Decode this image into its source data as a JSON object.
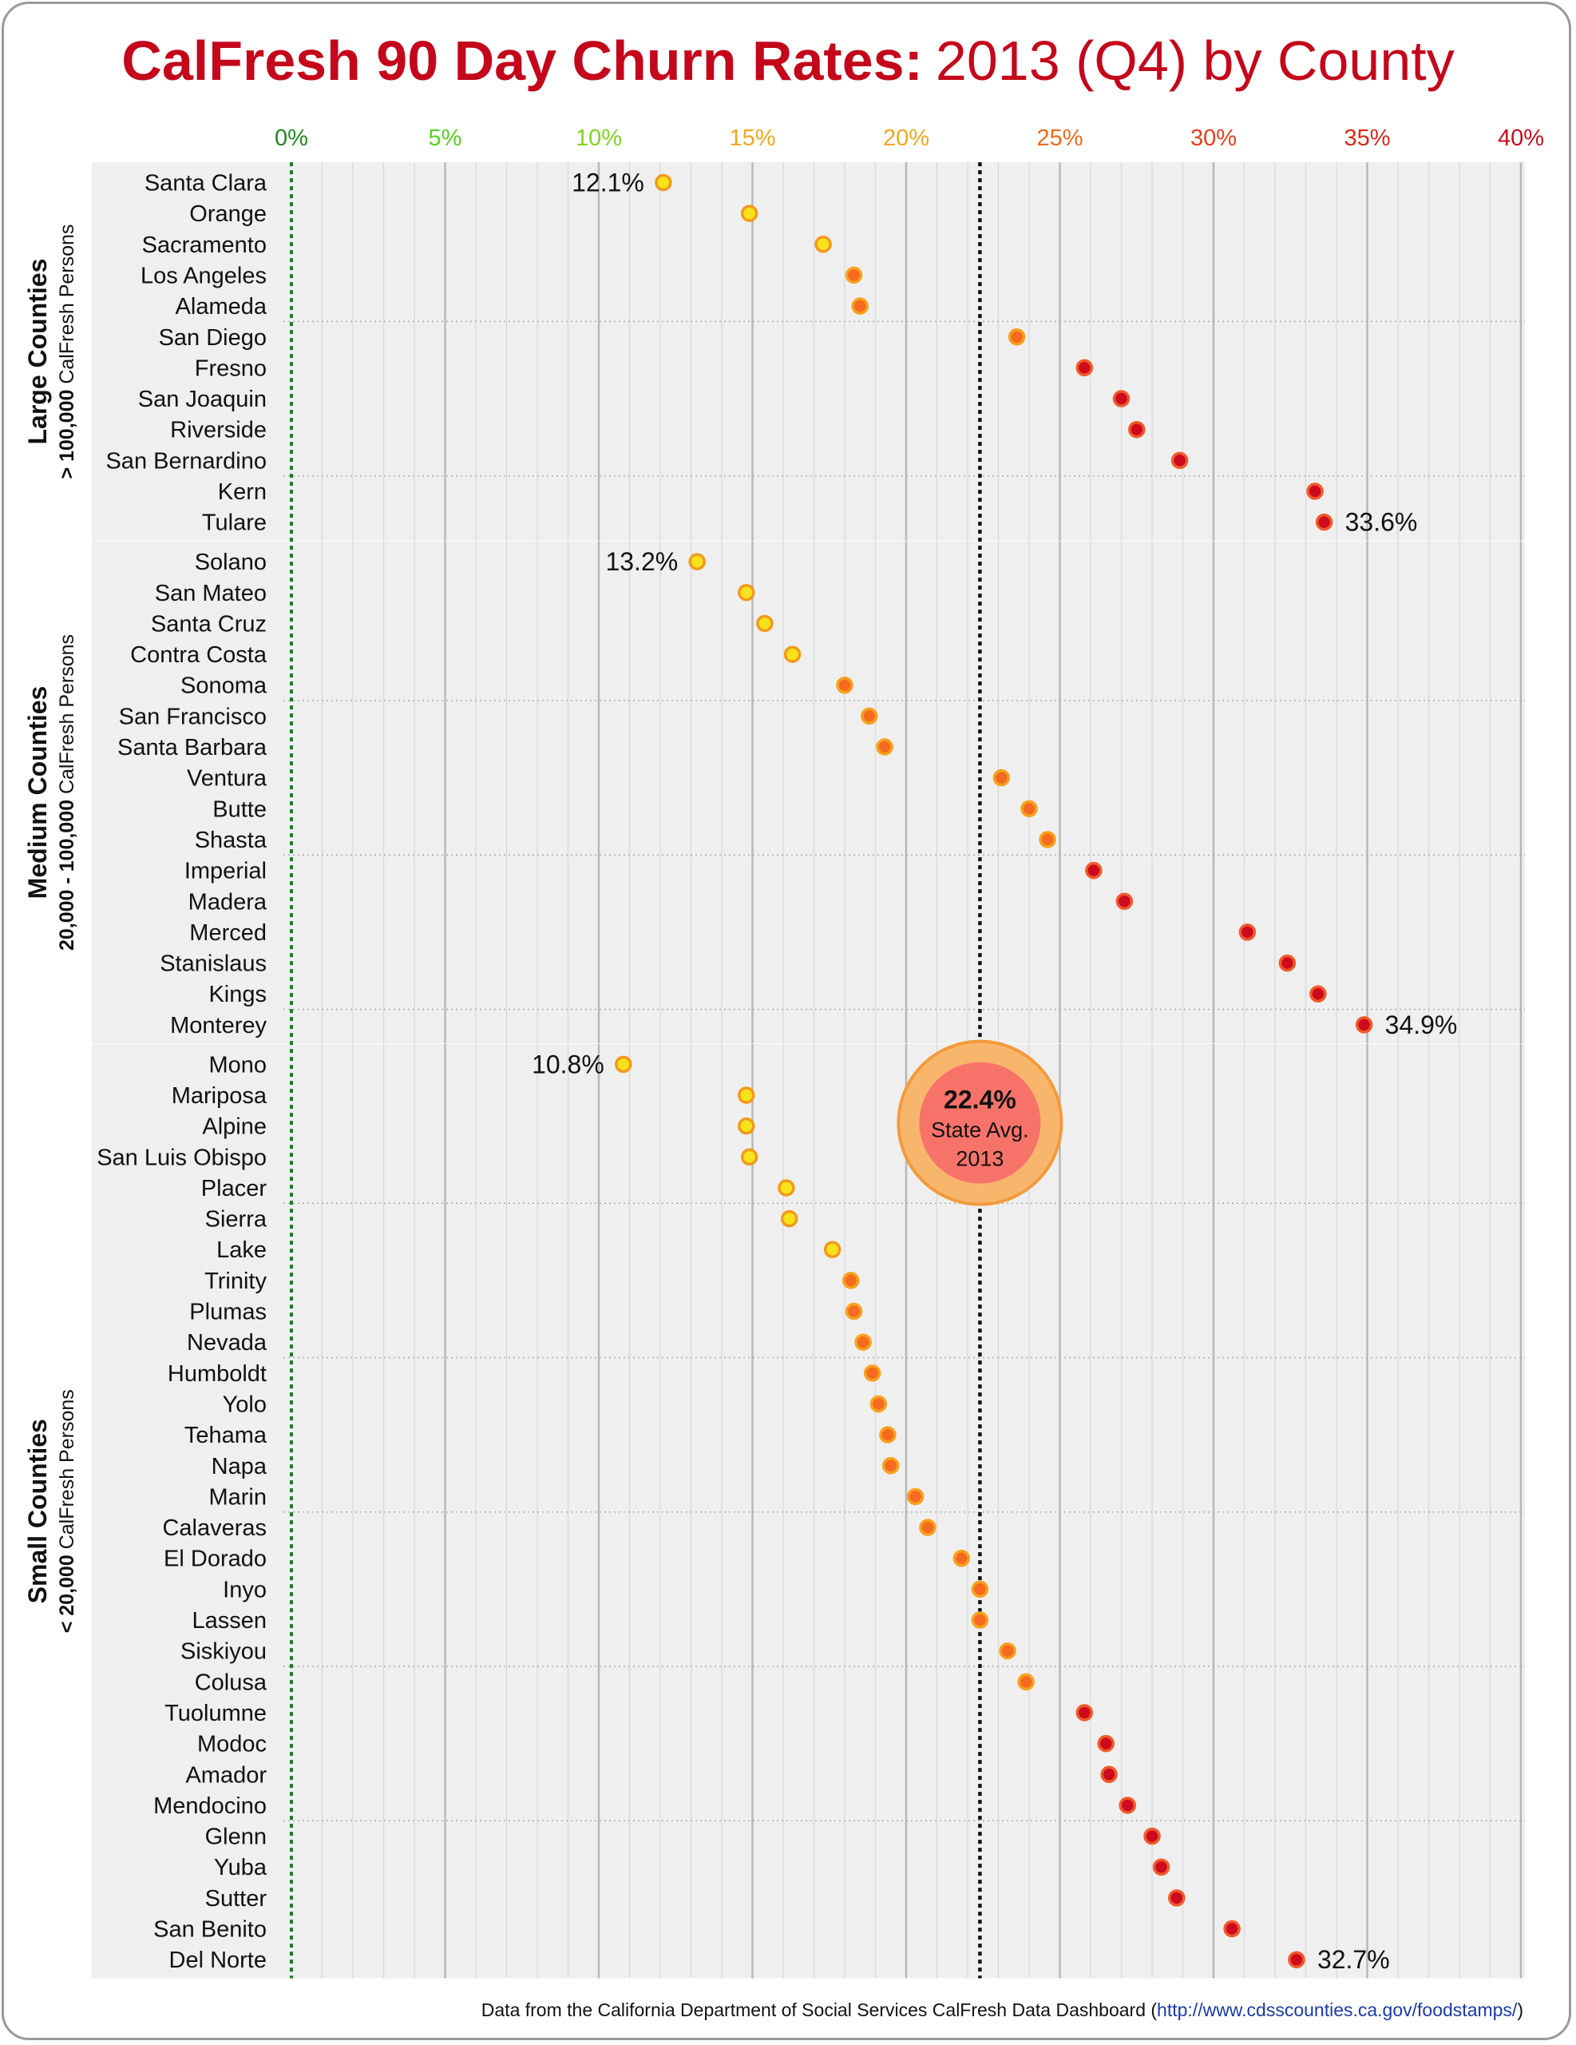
{
  "title": {
    "bold": "CalFresh 90 Day Churn Rates:",
    "rest": "2013 (Q4) by County"
  },
  "source": {
    "text": "Data from the California Department of Social Services CalFresh Data Dashboard",
    "link": "http://www.cdsscounties.ca.gov/foodstamps/"
  },
  "colors": {
    "low": "#f7e21b",
    "mid": "#f46a1f",
    "high": "#cd0a1e",
    "zero_line": "#1f7a1f",
    "avg_line": "#111111",
    "panel_bg": "#efefef",
    "grid": "#bdbdbd",
    "tick_colors": [
      "#1f8a1f",
      "#55d11f",
      "#7fd41f",
      "#f2a81d",
      "#f2a81d",
      "#ef6a1d",
      "#e4401a",
      "#d42a1a",
      "#c70f1f"
    ]
  },
  "chart_data": {
    "type": "scatter",
    "title": "CalFresh 90 Day Churn Rates: 2013 (Q4) by County",
    "x_axis": {
      "range": [
        0,
        40
      ],
      "ticks": [
        "0%",
        "5%",
        "10%",
        "15%",
        "20%",
        "25%",
        "30%",
        "35%",
        "40%"
      ],
      "position": "top"
    },
    "state_average": {
      "value": 22.4,
      "label": "22.4%",
      "line1": "State Avg.",
      "line2": "2013"
    },
    "groups": [
      {
        "name": "Large Counties",
        "subtitle_bold": "> 100,000",
        "subtitle": "CalFresh Persons",
        "counties": [
          {
            "name": "Santa Clara",
            "value": 12.1,
            "label": "12.1%"
          },
          {
            "name": "Orange",
            "value": 14.9
          },
          {
            "name": "Sacramento",
            "value": 17.3
          },
          {
            "name": "Los Angeles",
            "value": 18.3
          },
          {
            "name": "Alameda",
            "value": 18.5
          },
          {
            "name": "San Diego",
            "value": 23.6
          },
          {
            "name": "Fresno",
            "value": 25.8
          },
          {
            "name": "San Joaquin",
            "value": 27.0
          },
          {
            "name": "Riverside",
            "value": 27.5
          },
          {
            "name": "San Bernardino",
            "value": 28.9
          },
          {
            "name": "Kern",
            "value": 33.3
          },
          {
            "name": "Tulare",
            "value": 33.6,
            "label": "33.6%"
          }
        ]
      },
      {
        "name": "Medium Counties",
        "subtitle_bold": "20,000 - 100,000",
        "subtitle": "CalFresh Persons",
        "counties": [
          {
            "name": "Solano",
            "value": 13.2,
            "label": "13.2%"
          },
          {
            "name": "San Mateo",
            "value": 14.8
          },
          {
            "name": "Santa Cruz",
            "value": 15.4
          },
          {
            "name": "Contra Costa",
            "value": 16.3
          },
          {
            "name": "Sonoma",
            "value": 18.0
          },
          {
            "name": "San Francisco",
            "value": 18.8
          },
          {
            "name": "Santa Barbara",
            "value": 19.3
          },
          {
            "name": "Ventura",
            "value": 23.1
          },
          {
            "name": "Butte",
            "value": 24.0
          },
          {
            "name": "Shasta",
            "value": 24.6
          },
          {
            "name": "Imperial",
            "value": 26.1
          },
          {
            "name": "Madera",
            "value": 27.1
          },
          {
            "name": "Merced",
            "value": 31.1
          },
          {
            "name": "Stanislaus",
            "value": 32.4
          },
          {
            "name": "Kings",
            "value": 33.4
          },
          {
            "name": "Monterey",
            "value": 34.9,
            "label": "34.9%"
          }
        ]
      },
      {
        "name": "Small Counties",
        "subtitle_bold": "< 20,000",
        "subtitle": "CalFresh Persons",
        "counties": [
          {
            "name": "Mono",
            "value": 10.8,
            "label": "10.8%"
          },
          {
            "name": "Mariposa",
            "value": 14.8
          },
          {
            "name": "Alpine",
            "value": 14.8
          },
          {
            "name": "San Luis Obispo",
            "value": 14.9
          },
          {
            "name": "Placer",
            "value": 16.1
          },
          {
            "name": "Sierra",
            "value": 16.2
          },
          {
            "name": "Lake",
            "value": 17.6
          },
          {
            "name": "Trinity",
            "value": 18.2
          },
          {
            "name": "Plumas",
            "value": 18.3
          },
          {
            "name": "Nevada",
            "value": 18.6
          },
          {
            "name": "Humboldt",
            "value": 18.9
          },
          {
            "name": "Yolo",
            "value": 19.1
          },
          {
            "name": "Tehama",
            "value": 19.4
          },
          {
            "name": "Napa",
            "value": 19.5
          },
          {
            "name": "Marin",
            "value": 20.3
          },
          {
            "name": "Calaveras",
            "value": 20.7
          },
          {
            "name": "El Dorado",
            "value": 21.8
          },
          {
            "name": "Inyo",
            "value": 22.4
          },
          {
            "name": "Lassen",
            "value": 22.4
          },
          {
            "name": "Siskiyou",
            "value": 23.3
          },
          {
            "name": "Colusa",
            "value": 23.9
          },
          {
            "name": "Tuolumne",
            "value": 25.8
          },
          {
            "name": "Modoc",
            "value": 26.5
          },
          {
            "name": "Amador",
            "value": 26.6
          },
          {
            "name": "Mendocino",
            "value": 27.2
          },
          {
            "name": "Glenn",
            "value": 28.0
          },
          {
            "name": "Yuba",
            "value": 28.3
          },
          {
            "name": "Sutter",
            "value": 28.8
          },
          {
            "name": "San Benito",
            "value": 30.6
          },
          {
            "name": "Del Norte",
            "value": 32.7,
            "label": "32.7%"
          }
        ]
      }
    ]
  }
}
